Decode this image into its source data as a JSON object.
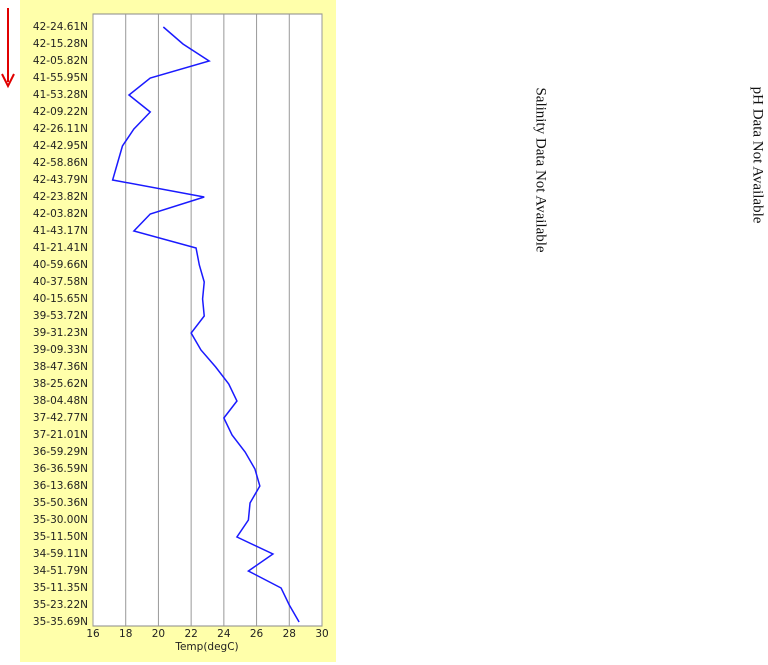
{
  "chart_data": {
    "type": "line",
    "xlabel": "Temp(degC)",
    "categories": [
      "42-24.61N",
      "42-15.28N",
      "42-05.82N",
      "41-55.95N",
      "41-53.28N",
      "42-09.22N",
      "42-26.11N",
      "42-42.95N",
      "42-58.86N",
      "42-43.79N",
      "42-23.82N",
      "42-03.82N",
      "41-43.17N",
      "41-21.41N",
      "40-59.66N",
      "40-37.58N",
      "40-15.65N",
      "39-53.72N",
      "39-31.23N",
      "39-09.33N",
      "38-47.36N",
      "38-25.62N",
      "38-04.48N",
      "37-42.77N",
      "37-21.01N",
      "36-59.29N",
      "36-36.59N",
      "36-13.68N",
      "35-50.36N",
      "35-30.00N",
      "35-11.50N",
      "34-59.11N",
      "34-51.79N",
      "35-11.35N",
      "35-23.22N",
      "35-35.69N"
    ],
    "values": [
      20.3,
      21.5,
      23.1,
      19.5,
      18.2,
      19.5,
      18.5,
      17.8,
      17.5,
      17.2,
      22.8,
      19.5,
      18.5,
      22.3,
      22.5,
      22.8,
      22.7,
      22.8,
      22.0,
      22.6,
      23.5,
      24.3,
      24.8,
      24.0,
      24.5,
      25.3,
      25.9,
      26.2,
      25.6,
      25.5,
      24.8,
      27.0,
      25.5,
      27.5,
      28.0,
      28.6
    ],
    "color": "#1a1aff",
    "xlim": [
      16,
      30
    ],
    "xticks": [
      16,
      18,
      20,
      22,
      24,
      26,
      28,
      30
    ],
    "grid": true
  },
  "notes": [
    "Salinity Data Not Available",
    "pH Data Not Available"
  ]
}
